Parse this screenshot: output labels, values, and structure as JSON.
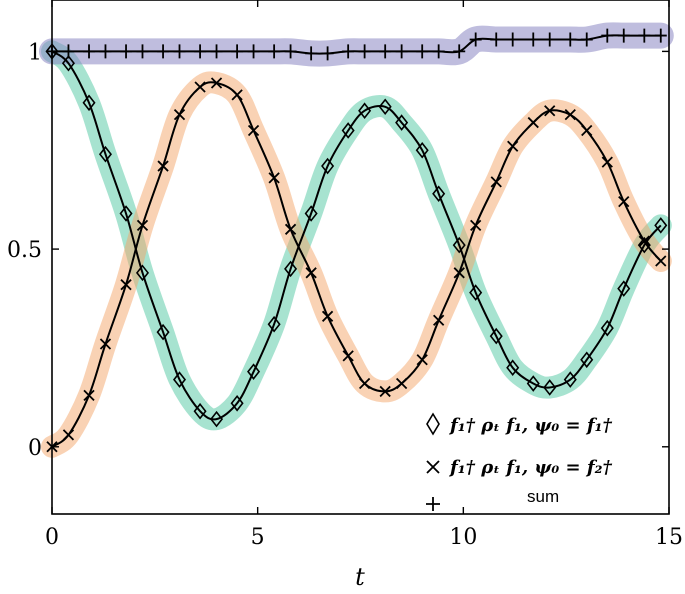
{
  "chart_data": {
    "type": "line",
    "xlabel": "t",
    "ylabel": "",
    "xlim": [
      0,
      15
    ],
    "ylim": [
      -0.17,
      1.13
    ],
    "xticks": [
      0,
      5,
      10,
      15
    ],
    "xtick_labels": [
      "0",
      "5",
      "10",
      "15"
    ],
    "yticks": [
      0,
      0.5,
      1
    ],
    "ytick_labels": [
      "0",
      "0.5",
      "1"
    ],
    "grid": false,
    "legend_position": "bottom-right",
    "legend": [
      {
        "marker": "diamond",
        "label": "f₁† ρₜ f₁,  ψ₀ = f₁†"
      },
      {
        "marker": "x",
        "label": "f₁† ρₜ f₁,  ψ₀ = f₂†"
      },
      {
        "marker": "plus",
        "label": "sum"
      }
    ],
    "colors": {
      "series1_band": "#4fc7a2",
      "series2_band": "#f3a56a",
      "sum_band": "#8a86c2",
      "line": "#000000"
    },
    "series": [
      {
        "marker": "diamond",
        "band_color": "#4fc7a2",
        "x": [
          0.0,
          0.4,
          0.9,
          1.3,
          1.8,
          2.2,
          2.7,
          3.1,
          3.6,
          4.0,
          4.5,
          4.9,
          5.4,
          5.8,
          6.3,
          6.7,
          7.2,
          7.6,
          8.1,
          8.5,
          9.0,
          9.4,
          9.9,
          10.3,
          10.8,
          11.2,
          11.7,
          12.1,
          12.6,
          13.0,
          13.5,
          13.9,
          14.4,
          14.8
        ],
        "y": [
          1.0,
          0.97,
          0.87,
          0.74,
          0.59,
          0.44,
          0.29,
          0.17,
          0.09,
          0.07,
          0.11,
          0.19,
          0.31,
          0.45,
          0.59,
          0.71,
          0.8,
          0.85,
          0.86,
          0.82,
          0.75,
          0.64,
          0.51,
          0.39,
          0.28,
          0.2,
          0.16,
          0.15,
          0.17,
          0.22,
          0.3,
          0.4,
          0.51,
          0.56
        ]
      },
      {
        "marker": "x",
        "band_color": "#f3a56a",
        "x": [
          0.0,
          0.4,
          0.9,
          1.3,
          1.8,
          2.2,
          2.7,
          3.1,
          3.6,
          4.0,
          4.5,
          4.9,
          5.4,
          5.8,
          6.3,
          6.7,
          7.2,
          7.6,
          8.1,
          8.5,
          9.0,
          9.4,
          9.9,
          10.3,
          10.8,
          11.2,
          11.7,
          12.1,
          12.6,
          13.0,
          13.5,
          13.9,
          14.4,
          14.8
        ],
        "y": [
          0.0,
          0.03,
          0.13,
          0.26,
          0.41,
          0.56,
          0.71,
          0.84,
          0.91,
          0.92,
          0.89,
          0.8,
          0.68,
          0.55,
          0.44,
          0.33,
          0.23,
          0.16,
          0.14,
          0.16,
          0.22,
          0.32,
          0.44,
          0.56,
          0.67,
          0.76,
          0.82,
          0.85,
          0.84,
          0.8,
          0.72,
          0.62,
          0.52,
          0.47
        ]
      },
      {
        "marker": "plus",
        "band_color": "#8a86c2",
        "name": "sum",
        "x": [
          0.0,
          0.4,
          0.9,
          1.3,
          1.8,
          2.2,
          2.7,
          3.1,
          3.6,
          4.0,
          4.5,
          4.9,
          5.4,
          5.8,
          6.3,
          6.7,
          7.2,
          7.6,
          8.1,
          8.5,
          9.0,
          9.4,
          9.9,
          10.3,
          10.8,
          11.2,
          11.7,
          12.1,
          12.6,
          13.0,
          13.5,
          13.9,
          14.4,
          14.8
        ],
        "y": [
          1.0,
          1.0,
          1.0,
          1.0,
          1.0,
          1.0,
          1.0,
          1.0,
          1.0,
          1.0,
          1.0,
          1.0,
          1.0,
          1.0,
          0.995,
          0.995,
          1.0,
          1.0,
          1.0,
          1.0,
          1.0,
          1.0,
          1.0,
          1.03,
          1.03,
          1.03,
          1.03,
          1.03,
          1.03,
          1.03,
          1.04,
          1.04,
          1.04,
          1.04
        ]
      }
    ]
  }
}
